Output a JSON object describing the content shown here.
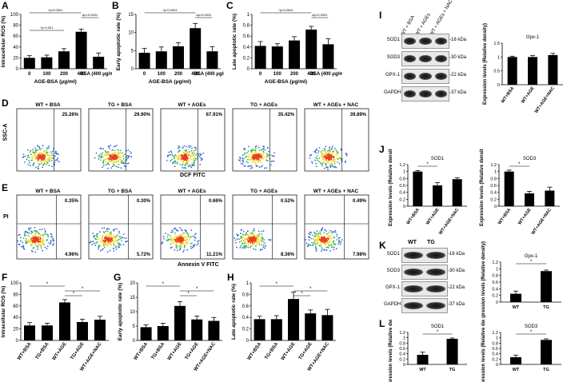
{
  "panel_labels": [
    "A",
    "B",
    "C",
    "D",
    "E",
    "F",
    "G",
    "H",
    "I",
    "J",
    "K",
    "L"
  ],
  "chart_data": [
    {
      "id": "A",
      "type": "bar",
      "ylabel": "Intracellular ROS (%)",
      "xlabel": "AGE-BSA (μg/ml)",
      "categories": [
        "0",
        "100",
        "200",
        "400",
        "BSA (400 μg/ml)"
      ],
      "values": [
        20,
        21,
        32,
        68,
        22
      ],
      "errors": [
        4,
        4,
        5,
        5,
        7
      ],
      "ylim": [
        0,
        100
      ],
      "yticks": [
        0,
        20,
        40,
        60,
        80,
        100
      ],
      "annotations": [
        "*p<0.0001",
        "*p<0.001",
        "Δp<0.0001"
      ]
    },
    {
      "id": "B",
      "type": "bar",
      "ylabel": "Early apoptotic rate (%)",
      "xlabel": "AGE-BSA (μg/ml)",
      "categories": [
        "0",
        "100",
        "200",
        "400",
        "BSA (400 μg/ml)"
      ],
      "values": [
        4.4,
        4.8,
        6.2,
        11.2,
        4.8
      ],
      "errors": [
        1.2,
        1.2,
        1.0,
        1.3,
        1.3
      ],
      "ylim": [
        0,
        15
      ],
      "yticks": [
        0,
        5,
        10,
        15
      ],
      "annotations": [
        "*p<0.0001",
        "Δp<0.0001"
      ]
    },
    {
      "id": "C",
      "type": "bar",
      "ylabel": "Late apoptotic rate (%)",
      "xlabel": "AGE-BSA (μg/ml)",
      "categories": [
        "0",
        "100",
        "200",
        "400",
        "BSA (400 μg/ml)"
      ],
      "values": [
        0.42,
        0.41,
        0.52,
        0.72,
        0.45
      ],
      "errors": [
        0.08,
        0.05,
        0.07,
        0.06,
        0.1
      ],
      "ylim": [
        0,
        1.0
      ],
      "yticks": [
        0,
        0.2,
        0.4,
        0.6,
        0.8,
        1.0
      ],
      "annotations": [
        "*p<0.0001",
        "Δp<0.0001"
      ]
    },
    {
      "id": "F",
      "type": "bar",
      "ylabel": "Intracellular ROS (%)",
      "categories": [
        "WT+BSA",
        "TG+BSA",
        "WT+AGE",
        "TG+AGE",
        "WT+AGE+NAC"
      ],
      "values": [
        26,
        26,
        66,
        32,
        36
      ],
      "errors": [
        5,
        4,
        5,
        5,
        6
      ],
      "ylim": [
        0,
        100
      ],
      "yticks": [
        0,
        20,
        40,
        60,
        80,
        100
      ],
      "annotations": [
        "*",
        "*",
        "*"
      ]
    },
    {
      "id": "G",
      "type": "bar",
      "ylabel": "Early apoptotic rate (%)",
      "categories": [
        "WT+BSA",
        "TG+BSA",
        "WT+AGE",
        "TG+AGE",
        "WT+AGE+NAC"
      ],
      "values": [
        4.6,
        5.0,
        12.0,
        7.3,
        6.8
      ],
      "errors": [
        0.8,
        1.0,
        1.5,
        1.2,
        1.2
      ],
      "ylim": [
        0,
        20
      ],
      "yticks": [
        0,
        5,
        10,
        15,
        20
      ],
      "annotations": [
        "*",
        "*",
        "*"
      ]
    },
    {
      "id": "H",
      "type": "bar",
      "ylabel": "Late apoptotic rate (%)",
      "categories": [
        "WT+BSA",
        "TG+BSA",
        "WT+AGE",
        "TG+AGE",
        "WT+AGE+NAC"
      ],
      "values": [
        0.37,
        0.37,
        0.72,
        0.47,
        0.44
      ],
      "errors": [
        0.05,
        0.06,
        0.12,
        0.06,
        0.1
      ],
      "ylim": [
        0,
        1.0
      ],
      "yticks": [
        0,
        0.2,
        0.4,
        0.6,
        0.8,
        1.0
      ],
      "annotations": [
        "*",
        "*",
        "*"
      ]
    },
    {
      "id": "I",
      "type": "bar",
      "title": "Gpx-1",
      "ylabel": "Expression levels (Relative density)",
      "categories": [
        "WT+BSA",
        "WT+AGE",
        "WT+AGE+NAC"
      ],
      "values": [
        1.0,
        1.0,
        1.07
      ],
      "errors": [
        0.03,
        0.05,
        0.06
      ],
      "ylim": [
        0,
        1.5
      ],
      "yticks": [
        0.0,
        0.5,
        1.0,
        1.5
      ],
      "annotations": []
    },
    {
      "id": "J1",
      "type": "bar",
      "title": "SOD1",
      "ylabel": "Expression levels (Relative density)",
      "categories": [
        "WT+BSA",
        "WT+AGE",
        "WT+AGE+NAC"
      ],
      "values": [
        1.0,
        0.6,
        0.78
      ],
      "errors": [
        0.03,
        0.08,
        0.04
      ],
      "ylim": [
        0,
        1.2
      ],
      "yticks": [
        0.0,
        0.2,
        0.4,
        0.6,
        0.8,
        1.0,
        1.2
      ],
      "annotations": [
        "*"
      ]
    },
    {
      "id": "J2",
      "type": "bar",
      "title": "SOD3",
      "ylabel": "Expression levels (Relative density)",
      "categories": [
        "WT+BSA",
        "WT+AGE",
        "WT+AGE+NAC"
      ],
      "values": [
        1.0,
        0.37,
        0.45
      ],
      "errors": [
        0.04,
        0.06,
        0.1
      ],
      "ylim": [
        0,
        1.2
      ],
      "yticks": [
        0.0,
        0.2,
        0.4,
        0.6,
        0.8,
        1.0,
        1.2
      ],
      "annotations": [
        "*"
      ]
    },
    {
      "id": "K",
      "type": "bar",
      "title": "Gpx-1",
      "ylabel": "Expression levels (Relative density)",
      "categories": [
        "WT",
        "TG"
      ],
      "values": [
        0.25,
        0.93
      ],
      "errors": [
        0.08,
        0.03
      ],
      "ylim": [
        0,
        1.2
      ],
      "yticks": [
        0.0,
        0.2,
        0.4,
        0.6,
        0.8,
        1.0,
        1.2
      ],
      "annotations": [
        "*"
      ]
    },
    {
      "id": "L1",
      "type": "bar",
      "title": "SOD1",
      "ylabel": "Expression levels (Relative density)",
      "categories": [
        "WT",
        "TG"
      ],
      "values": [
        0.36,
        0.96
      ],
      "errors": [
        0.1,
        0.03
      ],
      "ylim": [
        0,
        1.2
      ],
      "yticks": [
        0.0,
        0.2,
        0.4,
        0.6,
        0.8,
        1.0,
        1.2
      ],
      "annotations": [
        "*"
      ]
    },
    {
      "id": "L2",
      "type": "bar",
      "title": "SOD3",
      "ylabel": "Expression levels (Relative density)",
      "categories": [
        "WT",
        "TG"
      ],
      "values": [
        0.27,
        0.92
      ],
      "errors": [
        0.08,
        0.04
      ],
      "ylim": [
        0,
        1.2
      ],
      "yticks": [
        0.0,
        0.2,
        0.4,
        0.6,
        0.8,
        1.0,
        1.2
      ],
      "annotations": [
        "*"
      ]
    }
  ],
  "flow_D": {
    "ylabel": "SSC-A",
    "xlabel": "DCF FITC",
    "plots": [
      {
        "title": "WT + BSA",
        "pct": "25.26%",
        "level": 0.22
      },
      {
        "title": "TG + BSA",
        "pct": "29.90%",
        "level": 0.3
      },
      {
        "title": "WT + AGEs",
        "pct": "67.91%",
        "level": 0.58
      },
      {
        "title": "TG + AGEs",
        "pct": "35.42%",
        "level": 0.34
      },
      {
        "title": "WT + AGEs + NAC",
        "pct": "39.89%",
        "level": 0.38
      }
    ]
  },
  "flow_E": {
    "ylabel": "PI",
    "xlabel": "Annexin V FITC",
    "plots": [
      {
        "title": "WT + BSA",
        "ur": "0.35%",
        "lr": "4.96%"
      },
      {
        "title": "TG + BSA",
        "ur": "0.30%",
        "lr": "5.72%"
      },
      {
        "title": "WT + AGEs",
        "ur": "0.66%",
        "lr": "11.21%"
      },
      {
        "title": "TG + AGEs",
        "ur": "0.52%",
        "lr": "8.36%"
      },
      {
        "title": "WT + AGEs + NAC",
        "ur": "0.49%",
        "lr": "7.98%"
      }
    ]
  },
  "blot_I": {
    "lanes": [
      "WT + BSA",
      "WT + AGEs",
      "WT + AGEs + NAC"
    ],
    "rows": [
      {
        "name": "SOD1",
        "kda": "-16 kDa"
      },
      {
        "name": "SOD3",
        "kda": "-30 kDa"
      },
      {
        "name": "GPX-1",
        "kda": "-22 kDa"
      },
      {
        "name": "GAPDH",
        "kda": "-37 kDa"
      }
    ]
  },
  "blot_K": {
    "lanes": [
      "WT",
      "TG"
    ],
    "rows": [
      {
        "name": "SOD1",
        "kda": "-16 kDa"
      },
      {
        "name": "SOD3",
        "kda": "-30 kDa"
      },
      {
        "name": "GPX-1",
        "kda": "-22 kDa"
      },
      {
        "name": "GAPDH",
        "kda": "-37 kDa"
      }
    ]
  }
}
